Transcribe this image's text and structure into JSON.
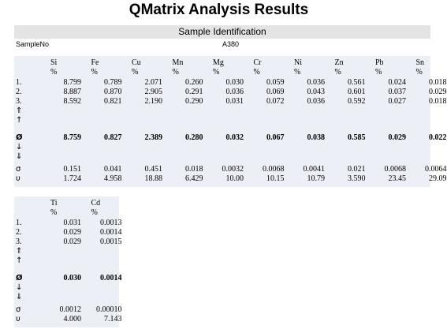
{
  "title": "QMatrix Analysis Results",
  "section_title": "Sample Identification",
  "sample": {
    "label": "SampleNo",
    "value": "A380"
  },
  "row_labels": [
    "1.",
    "2.",
    "3.",
    "⇑",
    "↑",
    "Ø",
    "↓",
    "⇓",
    "",
    "σ",
    "υ"
  ],
  "tables": [
    {
      "columns": [
        {
          "name": "Si",
          "unit": "%",
          "values": [
            "8.799",
            "8.887",
            "8.592",
            "",
            "",
            "8.759",
            "",
            "",
            "",
            "0.151",
            "1.724"
          ]
        },
        {
          "name": "Fe",
          "unit": "%",
          "values": [
            "0.789",
            "0.870",
            "0.821",
            "",
            "",
            "0.827",
            "",
            "",
            "",
            "0.041",
            "4.958"
          ]
        },
        {
          "name": "Cu",
          "unit": "%",
          "values": [
            "2.071",
            "2.905",
            "2.190",
            "",
            "",
            "2.389",
            "",
            "",
            "",
            "0.451",
            "18.88"
          ]
        },
        {
          "name": "Mn",
          "unit": "%",
          "values": [
            "0.260",
            "0.291",
            "0.290",
            "",
            "",
            "0.280",
            "",
            "",
            "",
            "0.018",
            "6.429"
          ]
        },
        {
          "name": "Mg",
          "unit": "%",
          "values": [
            "0.030",
            "0.036",
            "0.031",
            "",
            "",
            "0.032",
            "",
            "",
            "",
            "0.0032",
            "10.00"
          ]
        },
        {
          "name": "Cr",
          "unit": "%",
          "values": [
            "0.059",
            "0.069",
            "0.072",
            "",
            "",
            "0.067",
            "",
            "",
            "",
            "0.0068",
            "10.15"
          ]
        },
        {
          "name": "Ni",
          "unit": "%",
          "values": [
            "0.036",
            "0.043",
            "0.036",
            "",
            "",
            "0.038",
            "",
            "",
            "",
            "0.0041",
            "10.79"
          ]
        },
        {
          "name": "Zn",
          "unit": "%",
          "values": [
            "0.561",
            "0.601",
            "0.592",
            "",
            "",
            "0.585",
            "",
            "",
            "",
            "0.021",
            "3.590"
          ]
        },
        {
          "name": "Pb",
          "unit": "%",
          "values": [
            "0.024",
            "0.037",
            "0.027",
            "",
            "",
            "0.029",
            "",
            "",
            "",
            "0.0068",
            "23.45"
          ]
        },
        {
          "name": "Sn",
          "unit": "%",
          "values": [
            "0.018",
            "0.029",
            "0.018",
            "",
            "",
            "0.022",
            "",
            "",
            "",
            "0.0064",
            "29.09"
          ]
        }
      ]
    },
    {
      "columns": [
        {
          "name": "Ti",
          "unit": "%",
          "values": [
            "0.031",
            "0.029",
            "0.029",
            "",
            "",
            "0.030",
            "",
            "",
            "",
            "0.0012",
            "4.000"
          ]
        },
        {
          "name": "Cd",
          "unit": "%",
          "values": [
            "0.0013",
            "0.0014",
            "0.0015",
            "",
            "",
            "0.0014",
            "",
            "",
            "",
            "0.00010",
            "7.143"
          ]
        }
      ]
    }
  ]
}
